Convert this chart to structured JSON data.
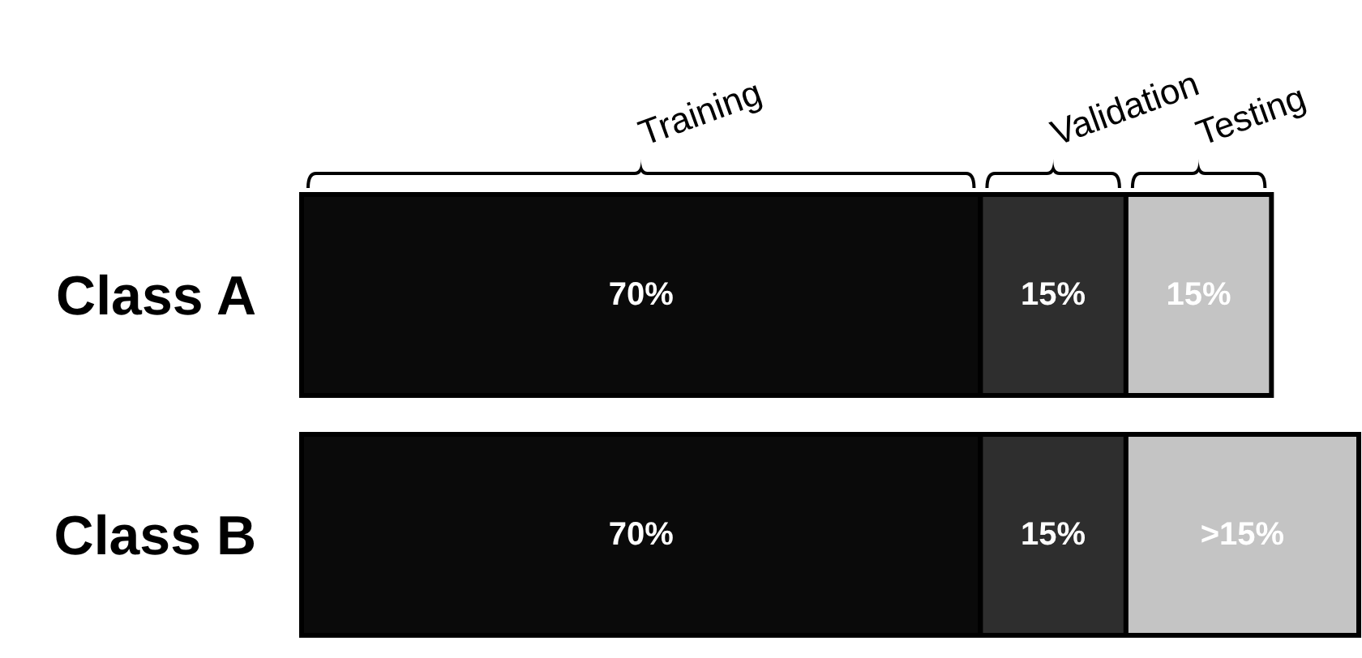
{
  "chart_data": {
    "type": "bar",
    "orientation": "horizontal",
    "stacked": true,
    "categories": [
      "Class A",
      "Class B"
    ],
    "series": [
      {
        "name": "Training",
        "color": "#0a0a0a",
        "values": [
          70,
          70
        ],
        "value_labels": [
          "70%",
          "70%"
        ]
      },
      {
        "name": "Validation",
        "color": "#2e2e2e",
        "values": [
          15,
          15
        ],
        "value_labels": [
          "15%",
          "15%"
        ]
      },
      {
        "name": "Testing",
        "color": "#c4c4c4",
        "values": [
          15,
          24
        ],
        "value_labels": [
          "15%",
          ">15%"
        ]
      }
    ],
    "tick_labels": "y"
  }
}
